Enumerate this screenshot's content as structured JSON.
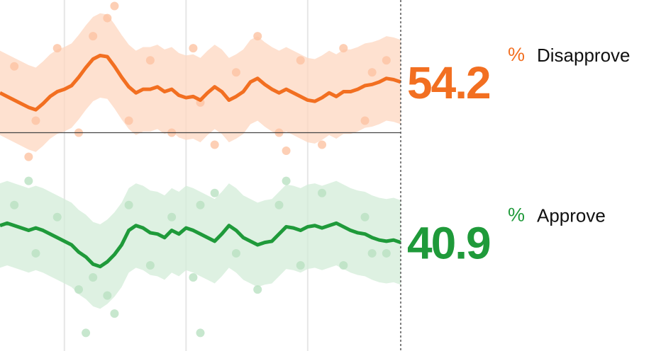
{
  "chart_data": {
    "type": "line",
    "categories": [
      null,
      null,
      null,
      null,
      null,
      null,
      null,
      null,
      null,
      null,
      null,
      null,
      null,
      null,
      null,
      null,
      null,
      null,
      null,
      null,
      null,
      null,
      null,
      null,
      null,
      null,
      null,
      null,
      null,
      null,
      null,
      null,
      null,
      null,
      null,
      null,
      null,
      null,
      null,
      null,
      null,
      null,
      null,
      null,
      null,
      null,
      null,
      null,
      null,
      null,
      null,
      null,
      null,
      null,
      null,
      null,
      null
    ],
    "ylim": [
      31.9,
      61.0
    ],
    "reference_line": 50,
    "xgrid": [
      9,
      26,
      43
    ],
    "unit": "%",
    "series": [
      {
        "name": "Disapprove",
        "color": "#f26f21",
        "band_color": "#fdd7c0",
        "dot_color": "#fcc3a3",
        "values": [
          53.3,
          53.0,
          52.7,
          52.4,
          52.1,
          51.9,
          52.4,
          53.0,
          53.4,
          53.6,
          53.9,
          54.6,
          55.4,
          56.1,
          56.4,
          56.3,
          55.5,
          54.6,
          53.8,
          53.3,
          53.6,
          53.6,
          53.8,
          53.4,
          53.6,
          53.1,
          52.9,
          53.0,
          52.7,
          53.3,
          53.8,
          53.4,
          52.7,
          53.0,
          53.4,
          54.2,
          54.5,
          54.0,
          53.6,
          53.3,
          53.6,
          53.3,
          53.0,
          52.7,
          52.6,
          52.9,
          53.3,
          53.0,
          53.4,
          53.4,
          53.6,
          53.9,
          54.0,
          54.2,
          54.5,
          54.4,
          54.2
        ],
        "upper": [
          56.8,
          56.5,
          56.2,
          55.9,
          55.6,
          55.4,
          55.9,
          56.5,
          56.9,
          57.1,
          57.4,
          58.1,
          58.9,
          59.6,
          59.9,
          59.8,
          59.0,
          58.1,
          57.3,
          56.8,
          57.1,
          57.1,
          57.3,
          56.9,
          57.1,
          56.6,
          56.4,
          56.5,
          56.2,
          56.8,
          57.3,
          56.9,
          56.2,
          56.5,
          56.9,
          57.7,
          58.0,
          57.5,
          57.1,
          56.8,
          57.1,
          56.8,
          56.5,
          56.2,
          56.1,
          56.4,
          56.8,
          56.5,
          56.9,
          56.9,
          57.1,
          57.4,
          57.5,
          57.7,
          58.0,
          57.9,
          57.7
        ],
        "lower": [
          49.8,
          49.5,
          49.2,
          48.9,
          48.6,
          48.4,
          48.9,
          49.5,
          49.9,
          50.1,
          50.4,
          51.1,
          51.9,
          52.6,
          52.9,
          52.8,
          52.0,
          51.1,
          50.3,
          49.8,
          50.1,
          50.1,
          50.3,
          49.9,
          50.1,
          49.6,
          49.4,
          49.5,
          49.2,
          49.8,
          50.3,
          49.9,
          49.2,
          49.5,
          49.9,
          50.7,
          51.0,
          50.5,
          50.1,
          49.8,
          50.1,
          49.8,
          49.5,
          49.2,
          49.1,
          49.4,
          49.8,
          49.5,
          49.9,
          49.9,
          50.1,
          50.4,
          50.5,
          50.7,
          51.0,
          50.9,
          50.7
        ],
        "poll_x": [
          2,
          5,
          8,
          11,
          13,
          15,
          18,
          21,
          24,
          27,
          30,
          33,
          36,
          39,
          42,
          45,
          48,
          51,
          54,
          4,
          16,
          28,
          40,
          52
        ],
        "poll_values": [
          55.5,
          51,
          57,
          50,
          58,
          59.5,
          51,
          56,
          50,
          57,
          49,
          55,
          58,
          50,
          56,
          49,
          57,
          51,
          56,
          48,
          60.5,
          52.5,
          48.5,
          55
        ]
      },
      {
        "name": "Approve",
        "color": "#1f9a3a",
        "band_color": "#d3ecd8",
        "dot_color": "#b9e1c2",
        "values": [
          42.3,
          42.5,
          42.3,
          42.1,
          41.9,
          42.1,
          41.9,
          41.6,
          41.3,
          41.0,
          40.7,
          40.1,
          39.7,
          39.1,
          38.9,
          39.3,
          39.9,
          40.7,
          41.9,
          42.3,
          42.1,
          41.7,
          41.6,
          41.3,
          41.9,
          41.6,
          42.1,
          41.9,
          41.6,
          41.3,
          41.0,
          41.6,
          42.3,
          41.9,
          41.3,
          41.0,
          40.7,
          40.9,
          41.0,
          41.6,
          42.2,
          42.1,
          41.9,
          42.2,
          42.3,
          42.1,
          42.3,
          42.5,
          42.2,
          41.9,
          41.7,
          41.6,
          41.3,
          41.1,
          41.0,
          41.1,
          40.9
        ],
        "upper": [
          45.8,
          46.0,
          45.8,
          45.6,
          45.4,
          45.6,
          45.4,
          45.1,
          44.8,
          44.5,
          44.2,
          43.6,
          43.2,
          42.6,
          42.4,
          42.8,
          43.4,
          44.2,
          45.4,
          45.8,
          45.6,
          45.2,
          45.1,
          44.8,
          45.4,
          45.1,
          45.6,
          45.4,
          45.1,
          44.8,
          44.5,
          45.1,
          45.8,
          45.4,
          44.8,
          44.5,
          44.2,
          44.4,
          44.5,
          45.1,
          45.7,
          45.6,
          45.4,
          45.7,
          45.8,
          45.6,
          45.8,
          46.0,
          45.7,
          45.4,
          45.2,
          45.1,
          44.8,
          44.6,
          44.5,
          44.6,
          44.4
        ],
        "lower": [
          38.8,
          39.0,
          38.8,
          38.6,
          38.4,
          38.6,
          38.4,
          38.1,
          37.8,
          37.5,
          37.2,
          36.6,
          36.2,
          35.6,
          35.4,
          35.8,
          36.4,
          37.2,
          38.4,
          38.8,
          38.6,
          38.2,
          38.1,
          37.8,
          38.4,
          38.1,
          38.6,
          38.4,
          38.1,
          37.8,
          37.5,
          38.1,
          38.8,
          38.4,
          37.8,
          37.5,
          37.2,
          37.4,
          37.5,
          38.1,
          38.7,
          38.6,
          38.4,
          38.7,
          38.8,
          38.6,
          38.8,
          39.0,
          38.7,
          38.4,
          38.2,
          38.1,
          37.8,
          37.6,
          37.5,
          37.6,
          37.4
        ],
        "poll_x": [
          2,
          5,
          8,
          11,
          13,
          15,
          18,
          21,
          24,
          27,
          30,
          33,
          36,
          39,
          42,
          45,
          48,
          51,
          54,
          4,
          16,
          28,
          40,
          52,
          12,
          28
        ],
        "poll_values": [
          44,
          40,
          43,
          37,
          38,
          36.5,
          44,
          39,
          43,
          38,
          45,
          40,
          37,
          44,
          39,
          45,
          39,
          43,
          40,
          46,
          35,
          44,
          46,
          40,
          33.4,
          33.4
        ]
      }
    ]
  }
}
